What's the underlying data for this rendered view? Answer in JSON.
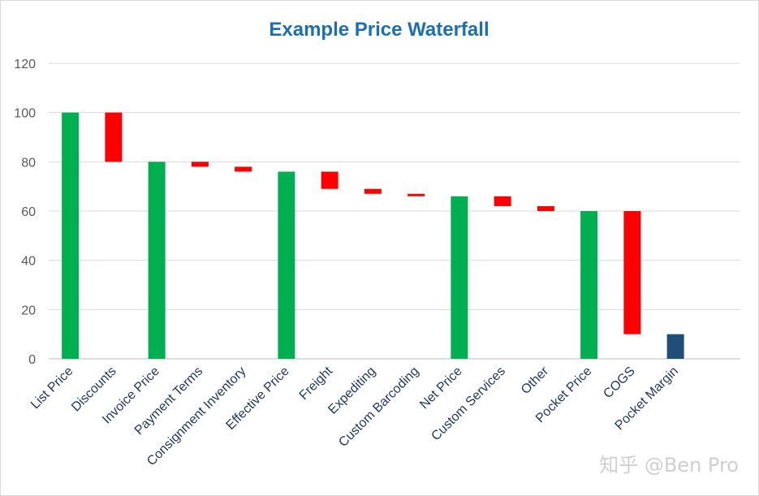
{
  "chart_data": {
    "type": "bar",
    "subtype": "waterfall",
    "title": "Example Price Waterfall",
    "xlabel": "",
    "ylabel": "",
    "ylim": [
      0,
      120
    ],
    "yticks": [
      0,
      20,
      40,
      60,
      80,
      100,
      120
    ],
    "grid": true,
    "legend": "none",
    "categories": [
      "List Price",
      "Discounts",
      "Invoice Price",
      "Payment Terms",
      "Consignment Inventory",
      "Effective Price",
      "Freight",
      "Expediting",
      "Custom Barcoding",
      "Net Price",
      "Custom Services",
      "Other",
      "Pocket Price",
      "COGS",
      "Pocket Margin"
    ],
    "bars": [
      {
        "label": "List Price",
        "kind": "total",
        "base": 0,
        "top": 100
      },
      {
        "label": "Discounts",
        "kind": "decrease",
        "base": 80,
        "top": 100
      },
      {
        "label": "Invoice Price",
        "kind": "total",
        "base": 0,
        "top": 80
      },
      {
        "label": "Payment Terms",
        "kind": "decrease",
        "base": 78,
        "top": 80
      },
      {
        "label": "Consignment Inventory",
        "kind": "decrease",
        "base": 76,
        "top": 78
      },
      {
        "label": "Effective Price",
        "kind": "total",
        "base": 0,
        "top": 76
      },
      {
        "label": "Freight",
        "kind": "decrease",
        "base": 69,
        "top": 76
      },
      {
        "label": "Expediting",
        "kind": "decrease",
        "base": 67,
        "top": 69
      },
      {
        "label": "Custom Barcoding",
        "kind": "decrease",
        "base": 66,
        "top": 67
      },
      {
        "label": "Net Price",
        "kind": "total",
        "base": 0,
        "top": 66
      },
      {
        "label": "Custom Services",
        "kind": "decrease",
        "base": 62,
        "top": 66
      },
      {
        "label": "Other",
        "kind": "decrease",
        "base": 60,
        "top": 62
      },
      {
        "label": "Pocket Price",
        "kind": "total",
        "base": 0,
        "top": 60
      },
      {
        "label": "COGS",
        "kind": "decrease",
        "base": 10,
        "top": 60
      },
      {
        "label": "Pocket Margin",
        "kind": "margin",
        "base": 0,
        "top": 10
      }
    ],
    "colors": {
      "total": "#00b050",
      "decrease": "#ff0000",
      "margin": "#1f4e79"
    }
  },
  "watermark": "知乎 @Ben Pro"
}
